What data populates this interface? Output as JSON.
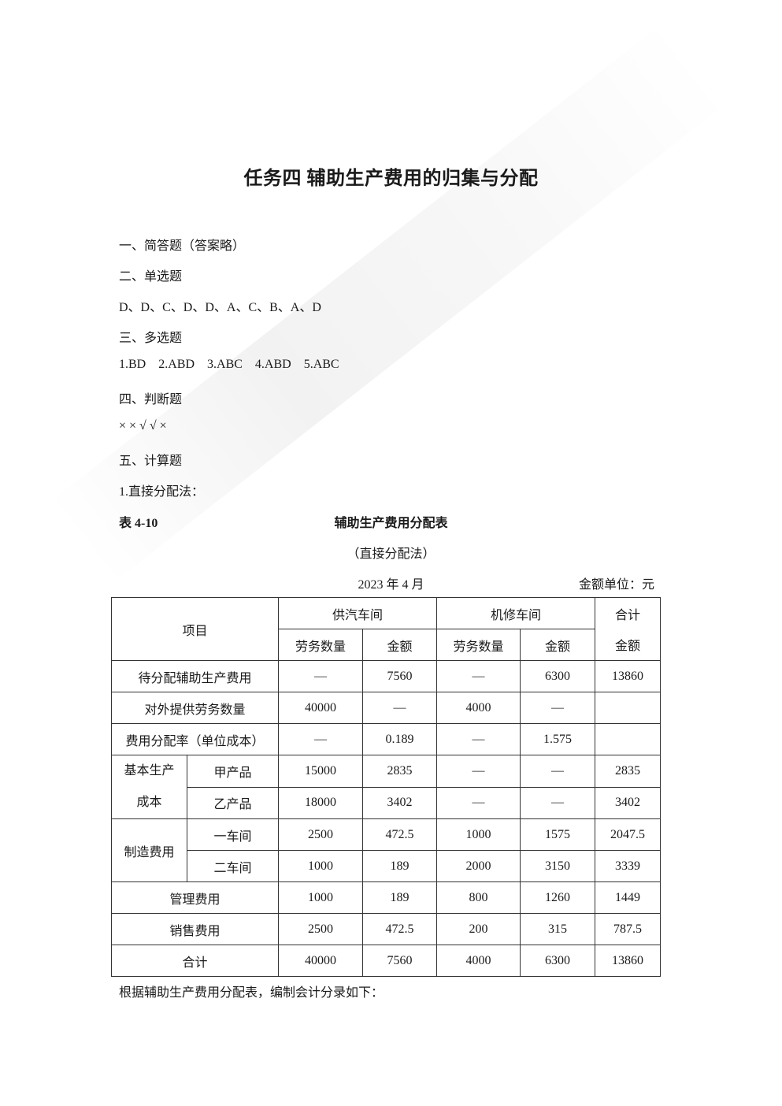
{
  "title": "任务四  辅助生产费用的归集与分配",
  "lines": [
    "一、简答题（答案略）",
    "二、单选题",
    "D、D、C、D、D、A、C、B、A、D",
    "三、多选题",
    "1.BD    2.ABD    3.ABC    4.ABD    5.ABC",
    "四、判断题",
    "× × √ √ ×",
    "五、计算题",
    "1.直接分配法："
  ],
  "table_caption": {
    "number": "表 4-10",
    "title": "辅助生产费用分配表",
    "subtitle": "（直接分配法）",
    "date": "2023 年 4 月",
    "unit": "金额单位：元"
  },
  "table": {
    "header": {
      "item": "项目",
      "group1": "供汽车间",
      "group2": "机修车间",
      "total": "合计",
      "qty": "劳务数量",
      "amount": "金额"
    },
    "rows": [
      {
        "label": "待分配辅助生产费用",
        "cells": [
          "—",
          "7560",
          "—",
          "6300",
          "13860"
        ]
      },
      {
        "label": "对外提供劳务数量",
        "cells": [
          "40000",
          "—",
          "4000",
          "—",
          ""
        ]
      },
      {
        "label": "费用分配率（单位成本）",
        "cells": [
          "—",
          "0.189",
          "—",
          "1.575",
          ""
        ]
      }
    ],
    "groups": [
      {
        "label": "基本生产成本",
        "label_lines": [
          "基本生产",
          "成本"
        ],
        "rows": [
          {
            "label": "甲产品",
            "cells": [
              "15000",
              "2835",
              "—",
              "—",
              "2835"
            ]
          },
          {
            "label": "乙产品",
            "cells": [
              "18000",
              "3402",
              "—",
              "—",
              "3402"
            ]
          }
        ]
      },
      {
        "label": "制造费用",
        "rows": [
          {
            "label": "一车间",
            "cells": [
              "2500",
              "472.5",
              "1000",
              "1575",
              "2047.5"
            ]
          },
          {
            "label": "二车间",
            "cells": [
              "1000",
              "189",
              "2000",
              "3150",
              "3339"
            ]
          }
        ]
      }
    ],
    "tail_rows": [
      {
        "label": "管理费用",
        "cells": [
          "1000",
          "189",
          "800",
          "1260",
          "1449"
        ]
      },
      {
        "label": "销售费用",
        "cells": [
          "2500",
          "472.5",
          "200",
          "315",
          "787.5"
        ]
      },
      {
        "label": "合计",
        "cells": [
          "40000",
          "7560",
          "4000",
          "6300",
          "13860"
        ]
      }
    ]
  },
  "footer": "根据辅助生产费用分配表，编制会计分录如下："
}
